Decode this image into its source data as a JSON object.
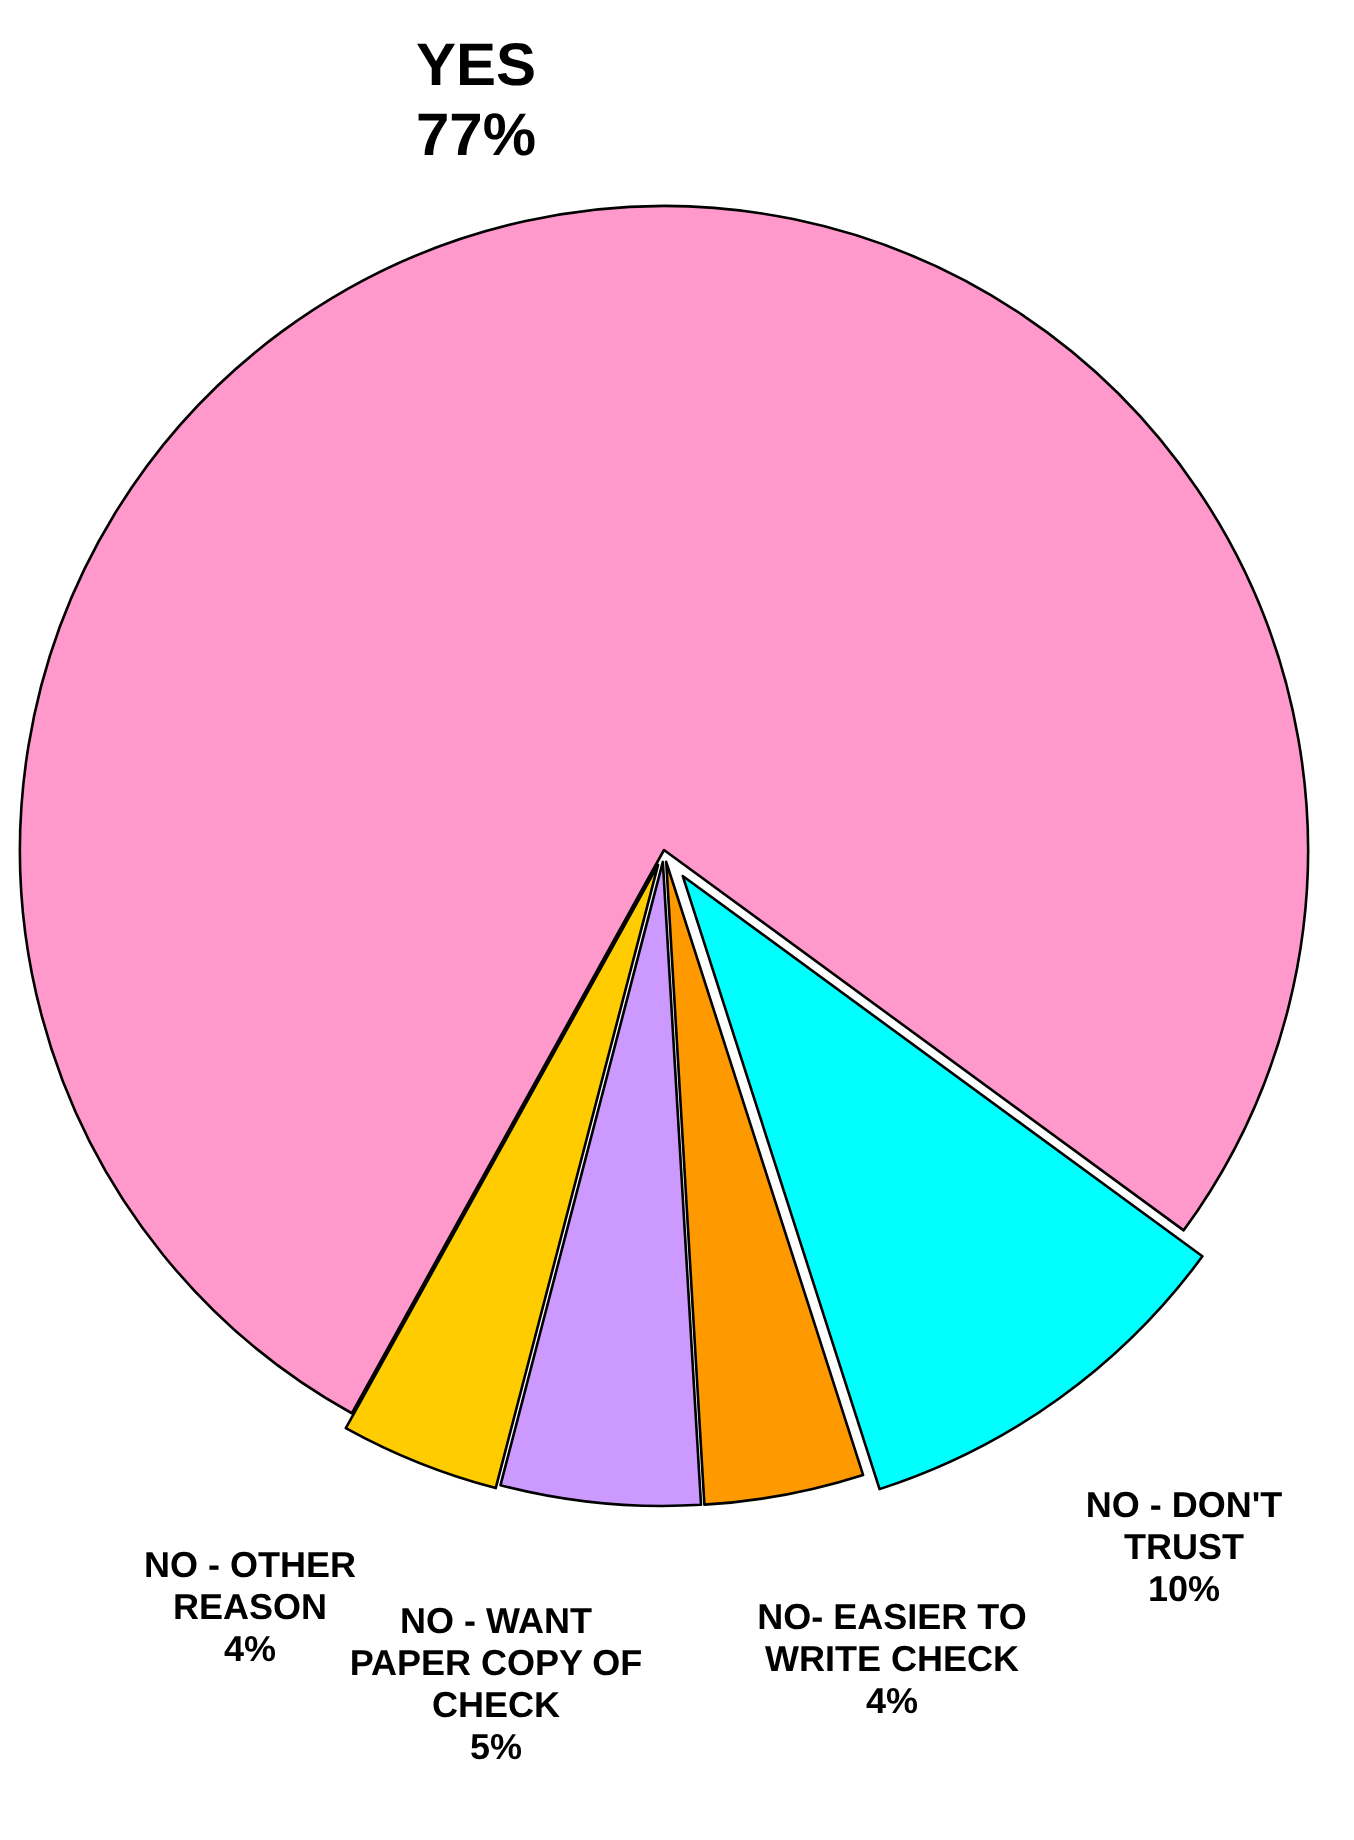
{
  "chart_data": {
    "type": "pie",
    "categories": [
      "YES",
      "NO - DON'T TRUST",
      "NO- EASIER TO WRITE CHECK",
      "NO - WANT PAPER COPY OF CHECK",
      "NO - OTHER REASON"
    ],
    "values": [
      77,
      10,
      4,
      5,
      4
    ],
    "colors": [
      "#ff99cc",
      "#00ffff",
      "#ff9900",
      "#cc99ff",
      "#ffcc00"
    ],
    "value_labels": [
      "77%",
      "10%",
      "4%",
      "5%",
      "4%"
    ]
  }
}
